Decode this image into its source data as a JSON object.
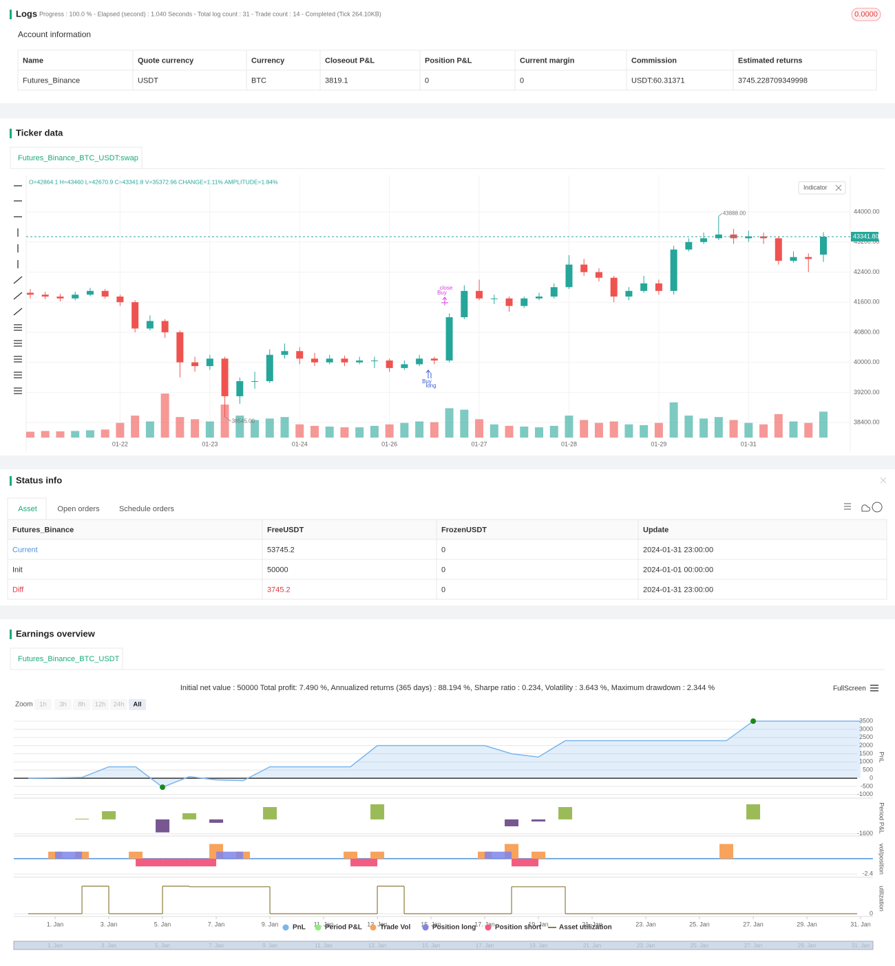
{
  "logs": {
    "title": "Logs",
    "progress": "Progress : 100.0 % - Elapsed (second) : 1.040  Seconds - Total log count : 31 - Trade count : 14 - Completed (Tick 264.10KB)",
    "badge": "0.0000",
    "account_title": "Account information",
    "table": {
      "headers": [
        "Name",
        "Quote currency",
        "Currency",
        "Closeout P&L",
        "Position P&L",
        "Current margin",
        "Commission",
        "Estimated returns"
      ],
      "rows": [
        [
          "Futures_Binance",
          "USDT",
          "BTC",
          "3819.1",
          "0",
          "0",
          "USDT:60.31371",
          "3745.228709349998"
        ]
      ]
    }
  },
  "ticker": {
    "title": "Ticker data",
    "tab": "Futures_Binance_BTC_USDT:swap",
    "ohlc_text": "O=42864.1 H=43460 L=42670.9 C=43341.8 V=35372.96 CHANGE=1.11% AMPLITUDE=1.84%",
    "indicator": "Indicator",
    "chart_data": {
      "type": "candlestick",
      "categories": [
        null,
        null,
        null,
        null,
        null,
        null,
        "01-22",
        null,
        null,
        null,
        null,
        null,
        "01-23",
        null,
        null,
        null,
        null,
        null,
        "01-24",
        null,
        null,
        null,
        null,
        null,
        "01-26",
        null,
        null,
        null,
        null,
        null,
        "01-27",
        null,
        null,
        null,
        null,
        null,
        "01-28",
        null,
        null,
        null,
        null,
        null,
        "01-29",
        null,
        null,
        null,
        null,
        null,
        "01-31",
        null,
        null,
        null,
        null,
        null
      ],
      "open": [
        41850,
        41800,
        41750,
        41700,
        41800,
        41900,
        41750,
        41600,
        40900,
        41100,
        40800,
        40000,
        39900,
        40100,
        39100,
        39500,
        39500,
        40200,
        40300,
        40100,
        40000,
        40100,
        40000,
        40050,
        40050,
        39850,
        39950,
        40100,
        40050,
        41200,
        41900,
        41700,
        41700,
        41500,
        41700,
        41750,
        42000,
        42600,
        42400,
        42250,
        41750,
        41900,
        42100,
        41900,
        43000,
        43200,
        43300,
        43400,
        43300,
        43350,
        43300,
        42700,
        42800,
        42864.1
      ],
      "high": [
        41950,
        41880,
        41820,
        41880,
        41980,
        41950,
        41800,
        41650,
        41250,
        41150,
        40850,
        40150,
        40200,
        40150,
        39600,
        39750,
        40350,
        40500,
        40400,
        40250,
        40200,
        40180,
        40150,
        40150,
        40100,
        40050,
        40200,
        40150,
        41300,
        42050,
        42200,
        41800,
        41750,
        41750,
        41850,
        42100,
        42850,
        42750,
        42500,
        42300,
        42000,
        42300,
        42200,
        43100,
        43300,
        43450,
        43888,
        43550,
        43500,
        43450,
        43350,
        42950,
        42900,
        43460
      ],
      "low": [
        41700,
        41680,
        41620,
        41650,
        41760,
        41700,
        41500,
        40800,
        40850,
        40650,
        39600,
        39750,
        39800,
        38545,
        38900,
        39300,
        39450,
        40100,
        39950,
        39900,
        39950,
        39900,
        39950,
        39850,
        39750,
        39800,
        39900,
        39950,
        40000,
        41150,
        41650,
        41550,
        41350,
        41450,
        41650,
        41700,
        41950,
        42300,
        42150,
        41600,
        41650,
        41850,
        41800,
        41800,
        42950,
        43150,
        43250,
        43150,
        43200,
        43150,
        42600,
        42650,
        42400,
        42670.9
      ],
      "close": [
        41800,
        41750,
        41700,
        41800,
        41900,
        41750,
        41600,
        40900,
        41100,
        40800,
        40000,
        39900,
        40100,
        39100,
        39500,
        39500,
        40200,
        40300,
        40100,
        40000,
        40100,
        40000,
        40050,
        40050,
        39850,
        39950,
        40100,
        40050,
        41200,
        41900,
        41700,
        41700,
        41500,
        41700,
        41750,
        42000,
        42600,
        42400,
        42250,
        41750,
        41900,
        42100,
        41900,
        43000,
        43200,
        43300,
        43400,
        43300,
        43350,
        43300,
        42700,
        42800,
        42750,
        43341.8
      ],
      "volume": [
        8000,
        9000,
        8500,
        9000,
        10000,
        11000,
        20000,
        30000,
        22000,
        60000,
        28000,
        25000,
        22000,
        45000,
        30000,
        24000,
        26000,
        28000,
        18000,
        16000,
        15000,
        14000,
        14000,
        16000,
        18000,
        20000,
        22000,
        21000,
        40000,
        38000,
        25000,
        18000,
        16000,
        15000,
        14000,
        16000,
        30000,
        24000,
        20000,
        22000,
        18000,
        17000,
        20000,
        48000,
        30000,
        26000,
        28000,
        24000,
        20000,
        18000,
        32000,
        22000,
        20000,
        35372.96
      ],
      "up_color": "#26a69a",
      "down_color": "#ef5350",
      "ylim": [
        38000,
        44970
      ],
      "yticks": [
        {
          "value": 44000,
          "label": "44000.00"
        },
        {
          "value": 43200,
          "label": "43200.00"
        },
        {
          "value": 42400,
          "label": "42400.00"
        },
        {
          "value": 41600,
          "label": "41600.00"
        },
        {
          "value": 40800,
          "label": "40800.00"
        },
        {
          "value": 40000,
          "label": "40000.00"
        },
        {
          "value": 39200,
          "label": "39200.00"
        },
        {
          "value": 38400,
          "label": "38400.00"
        }
      ],
      "last_price": {
        "value": 43341.8,
        "label": "43341.80"
      },
      "annotations": [
        {
          "value": 43888,
          "label": "43888.00"
        },
        {
          "value": 38545,
          "label": "38545.00"
        }
      ],
      "trade_labels": [
        "close",
        "Buy",
        "Buy",
        "long"
      ]
    }
  },
  "status": {
    "title": "Status info",
    "tabs": [
      "Asset",
      "Open orders",
      "Schedule orders"
    ],
    "table": {
      "headers": [
        "Futures_Binance",
        "FreeUSDT",
        "FrozenUSDT",
        "Update"
      ],
      "rows": [
        [
          "Current",
          "53745.2",
          "0",
          "2024-01-31 23:00:00"
        ],
        [
          "Init",
          "50000",
          "0",
          "2024-01-01 00:00:00"
        ],
        [
          "Diff",
          "3745.2",
          "0",
          "2024-01-31 23:00:00"
        ]
      ]
    }
  },
  "earnings": {
    "title": "Earnings overview",
    "tab": "Futures_Binance_BTC_USDT",
    "summary": "Initial net value : 50000 Total profit: 7.490 %, Annualized returns (365 days) : 88.194 %, Sharpe ratio : 0.234, Volatility : 3.643 %, Maximum drawdown : 2.344 %",
    "fullscreen": "FullScreen",
    "zoom_label": "Zoom",
    "zoom_buttons": [
      "1h",
      "3h",
      "8h",
      "12h",
      "24h",
      "All"
    ],
    "xlim": [
      -0.54,
      31.46
    ],
    "xticks": [
      {
        "value": 1,
        "label": "1. Jan"
      },
      {
        "value": 3,
        "label": "3. Jan"
      },
      {
        "value": 5,
        "label": "5. Jan"
      },
      {
        "value": 7,
        "label": "7. Jan"
      },
      {
        "value": 9,
        "label": "9. Jan"
      },
      {
        "value": 11,
        "label": "11. Jan"
      },
      {
        "value": 13,
        "label": "13. Jan"
      },
      {
        "value": 15,
        "label": "15. Jan"
      },
      {
        "value": 17,
        "label": "17. Jan"
      },
      {
        "value": 19,
        "label": "19. Jan"
      },
      {
        "value": 21,
        "label": "21. Jan"
      },
      {
        "value": 23,
        "label": "23. Jan"
      },
      {
        "value": 25,
        "label": "25. Jan"
      },
      {
        "value": 27,
        "label": "27. Jan"
      },
      {
        "value": 29,
        "label": "29. Jan"
      },
      {
        "value": 31,
        "label": "31. Jan"
      }
    ],
    "chart_data": [
      {
        "type": "area",
        "y_label": "PnL",
        "ylim": [
          -1220,
          3800
        ],
        "yticks": [
          3500,
          3000,
          2500,
          2000,
          1500,
          1000,
          500,
          0,
          -500,
          -1000
        ],
        "series": [
          {
            "name": "PnL",
            "color": "#7cb5ec",
            "x": [
              0,
              2,
              3,
              4,
              5,
              6,
              7,
              8,
              9,
              12,
              13,
              17,
              18,
              19,
              20,
              26,
              27,
              31
            ],
            "values": [
              0,
              50,
              700,
              700,
              -550,
              100,
              -100,
              -150,
              700,
              700,
              2000,
              2000,
              1500,
              1300,
              2300,
              2300,
              3500,
              3500
            ]
          }
        ]
      },
      {
        "type": "bar",
        "y_label": "Period P&L",
        "ylim": [
          -1850,
          2150
        ],
        "yticks": [
          -1600
        ],
        "series": [
          {
            "name": "Period P&L",
            "color": "#90ed7d",
            "positive_color": "#9bbb59",
            "negative_color": "#76578f",
            "x": [
              2,
              3,
              5,
              6,
              7,
              9,
              13,
              18,
              19,
              20,
              27
            ],
            "values": [
              80,
              920,
              -1450,
              690,
              -380,
              1380,
              1690,
              -770,
              -230,
              1380,
              1690
            ]
          }
        ]
      },
      {
        "type": "bar",
        "y_label": "vol/position",
        "ylim": [
          -2.9,
          2.8
        ],
        "yticks": [
          -2.4
        ],
        "series": [
          {
            "name": "Trade Vol",
            "color": "#f7a35c",
            "x": [
              1,
              2,
              4,
              7,
              8,
              12,
              13,
              17,
              18,
              19,
              26
            ],
            "values": [
              1.1,
              1.1,
              1.1,
              2.3,
              1.1,
              1.1,
              1.1,
              1.1,
              2.3,
              1.1,
              2.3
            ]
          },
          {
            "name": "Position long",
            "color": "#8085e9",
            "x": [
              1,
              7,
              17
            ],
            "values": [
              1.1,
              1.1,
              1.1
            ]
          },
          {
            "name": "Position short",
            "color": "#f15c80",
            "x": [
              4,
              5,
              6,
              12,
              18
            ],
            "values": [
              -1.2,
              -1.2,
              -1.2,
              -1.2,
              -1.2
            ]
          }
        ]
      },
      {
        "type": "step",
        "y_label": "utilization",
        "ylim": [
          -0.1,
          1.2
        ],
        "yticks": [
          0
        ],
        "series": [
          {
            "name": "Asset utilization",
            "color": "#8d7a3a",
            "x": [
              0,
              2,
              3,
              5,
              6,
              9,
              13,
              14,
              18,
              20
            ],
            "values": [
              0,
              1,
              0,
              1,
              0.98,
              0,
              1,
              0,
              0.98,
              0
            ]
          }
        ]
      }
    ]
  }
}
